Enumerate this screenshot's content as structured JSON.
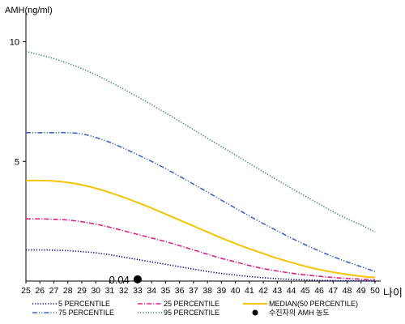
{
  "chart_data": {
    "type": "line",
    "ylabel": "AMH(ng/ml)",
    "xlabel": "나이",
    "x": [
      25,
      26,
      27,
      28,
      29,
      30,
      31,
      32,
      33,
      34,
      35,
      36,
      37,
      38,
      39,
      40,
      41,
      42,
      43,
      44,
      45,
      46,
      47,
      48,
      49,
      50
    ],
    "yticks": [
      5,
      10
    ],
    "ylim": [
      0,
      11
    ],
    "xlim": [
      25,
      50
    ],
    "grid": false,
    "legend_position": "bottom",
    "series": [
      {
        "name": "5 PERCENTILE",
        "color": "#000080",
        "dash": "dotted",
        "values": [
          1.3,
          1.3,
          1.29,
          1.27,
          1.23,
          1.18,
          1.1,
          1.0,
          0.9,
          0.8,
          0.7,
          0.6,
          0.5,
          0.4,
          0.32,
          0.25,
          0.19,
          0.14,
          0.1,
          0.07,
          0.05,
          0.03,
          0.02,
          0.01,
          0.01,
          0.0
        ]
      },
      {
        "name": "25 PERCENTILE",
        "color": "#e0218a",
        "dash": "dashdot",
        "values": [
          2.6,
          2.6,
          2.58,
          2.55,
          2.48,
          2.38,
          2.25,
          2.1,
          1.95,
          1.8,
          1.65,
          1.48,
          1.3,
          1.12,
          0.95,
          0.8,
          0.65,
          0.52,
          0.42,
          0.33,
          0.26,
          0.2,
          0.15,
          0.11,
          0.08,
          0.05
        ]
      },
      {
        "name": "MEDIAN(50 PERCENTILE)",
        "color": "#f5c400",
        "dash": "solid",
        "values": [
          4.2,
          4.2,
          4.18,
          4.12,
          4.02,
          3.88,
          3.7,
          3.5,
          3.28,
          3.05,
          2.8,
          2.55,
          2.3,
          2.05,
          1.8,
          1.57,
          1.35,
          1.15,
          0.95,
          0.78,
          0.62,
          0.48,
          0.37,
          0.28,
          0.2,
          0.15
        ]
      },
      {
        "name": "75 PERCENTILE",
        "color": "#3a66c8",
        "dash": "dashdotdot",
        "values": [
          6.2,
          6.2,
          6.2,
          6.2,
          6.15,
          6.0,
          5.8,
          5.55,
          5.28,
          5.0,
          4.7,
          4.38,
          4.05,
          3.72,
          3.38,
          3.05,
          2.72,
          2.4,
          2.1,
          1.8,
          1.52,
          1.26,
          1.02,
          0.8,
          0.6,
          0.4
        ]
      },
      {
        "name": "95 PERCENTILE",
        "color": "#2e8b57",
        "dash": "dotted",
        "values": [
          9.6,
          9.45,
          9.3,
          9.1,
          8.88,
          8.62,
          8.33,
          8.02,
          7.7,
          7.37,
          7.03,
          6.68,
          6.33,
          5.97,
          5.62,
          5.27,
          4.92,
          4.57,
          4.22,
          3.88,
          3.55,
          3.22,
          2.9,
          2.6,
          2.35,
          2.05
        ]
      }
    ],
    "marker": {
      "name": "수진자의 AMH 농도",
      "x": 33,
      "y": 0.04,
      "label": "0.04",
      "color": "#000000"
    }
  }
}
